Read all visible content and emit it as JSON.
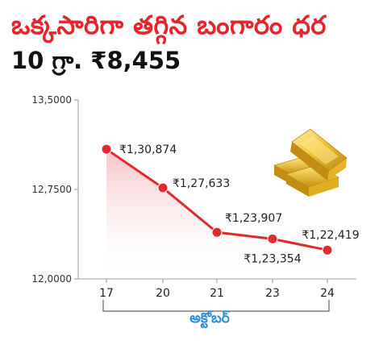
{
  "header": {
    "title": "ఒక్కసారిగా తగ్గిన బంగారం ధర",
    "subtitle": "10 గ్రా. ₹8,455"
  },
  "colors": {
    "title": "#e3262b",
    "line": "#e02a2f",
    "area": "#f7c9cb",
    "bracket": "#666666",
    "xlabel": "#2a8fd8"
  },
  "chart_data": {
    "type": "line",
    "title": "",
    "xlabel": "అక్టోబర్",
    "ylabel": "",
    "categories": [
      "17",
      "20",
      "21",
      "23",
      "24"
    ],
    "y_ticks": [
      "13,5000",
      "12,7500",
      "12,0000"
    ],
    "ylim": [
      120000,
      135000
    ],
    "grid": false,
    "area_fill": true,
    "series": [
      {
        "values": [
          130874,
          127633,
          123907,
          123354,
          122419
        ],
        "labels": [
          "₹1,30,874",
          "₹1,27,633",
          "₹1,23,907",
          "₹1,23,354",
          "₹1,22,419"
        ]
      }
    ]
  },
  "decorations": {
    "image_icon": "gold-bars-icon"
  }
}
